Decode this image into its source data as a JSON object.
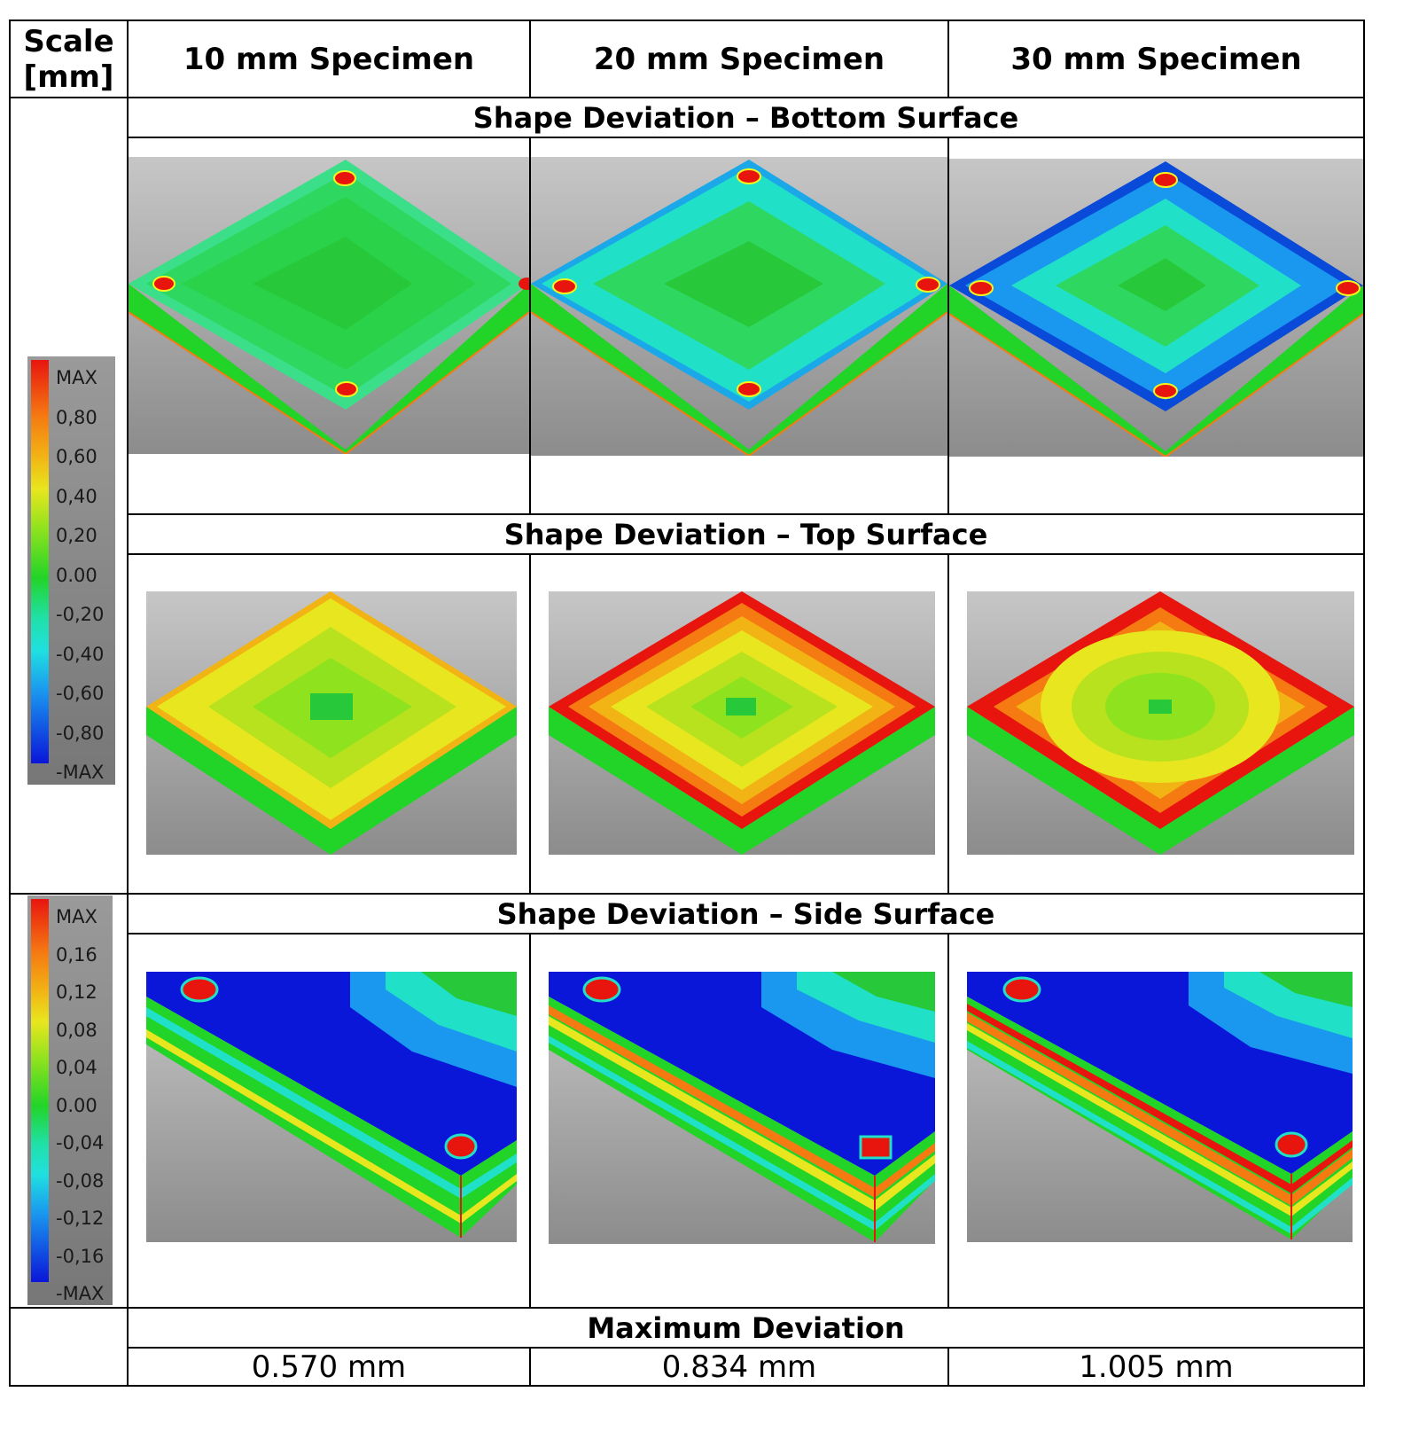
{
  "header": {
    "scale_label": "Scale\n[mm]",
    "columns": [
      "10 mm Specimen",
      "20 mm Specimen",
      "30 mm Specimen"
    ]
  },
  "sections": {
    "bottom": "Shape Deviation – Bottom Surface",
    "top": "Shape Deviation – Top Surface",
    "side": "Shape Deviation – Side Surface",
    "max": "Maximum Deviation"
  },
  "scale1": {
    "labels": [
      "MAX",
      "0,80",
      "0,60",
      "0,40",
      "0,20",
      "0.00",
      "-0,20",
      "-0,40",
      "-0,60",
      "-0,80",
      "-MAX"
    ]
  },
  "scale2": {
    "labels": [
      "MAX",
      "0,16",
      "0,12",
      "0,08",
      "0,04",
      "0.00",
      "-0,04",
      "-0,08",
      "-0,12",
      "-0,16",
      "-MAX"
    ]
  },
  "max_deviation": [
    "0.570 mm",
    "0.834 mm",
    "1.005 mm"
  ],
  "colors": {
    "red": "#e8150f",
    "orange": "#f57a12",
    "yellow": "#e8e61e",
    "green": "#22d428",
    "cyan": "#20e0c8",
    "blue": "#0a16d8"
  }
}
